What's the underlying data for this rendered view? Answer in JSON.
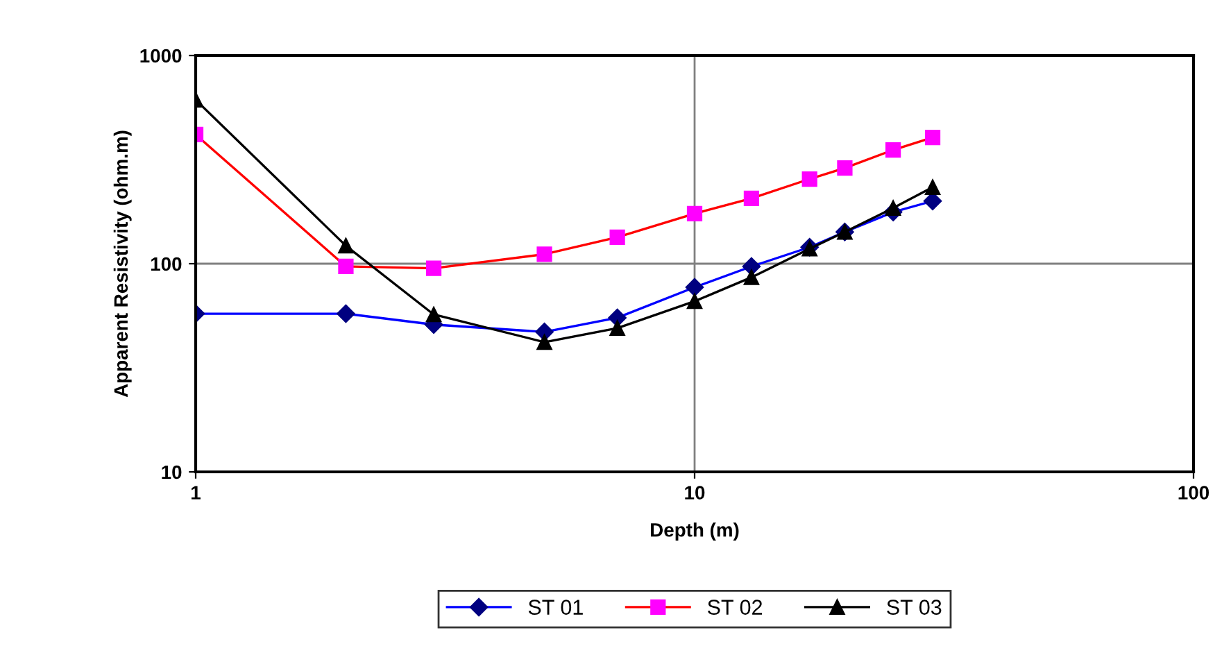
{
  "chart_data": {
    "type": "line",
    "xlabel": "Depth (m)",
    "ylabel": "Apparent Resistivity (ohm.m)",
    "x": [
      1,
      2,
      3,
      5,
      7,
      10,
      13,
      17,
      20,
      25,
      30
    ],
    "series": [
      {
        "name": "ST 01",
        "color": "#0000ff",
        "colors": [
          "#000080",
          "#000080",
          "#000080",
          "#000080",
          "#000080",
          "#000080",
          "#000080",
          "#000080",
          "#000080",
          "#000080",
          "#000080"
        ],
        "marker": "diamond",
        "values": [
          57.5,
          57.5,
          51,
          47,
          55,
          77,
          97,
          120,
          142,
          177,
          200
        ]
      },
      {
        "name": "ST 02",
        "color": "#ff0000",
        "colors": [
          "#ff00ff",
          "#ff00ff",
          "#ff00ff",
          "#ff00ff",
          "#ff00ff",
          "#ff00ff",
          "#ff00ff",
          "#ff00ff",
          "#ff00ff",
          "#ff00ff",
          "#ff00ff"
        ],
        "marker": "square",
        "values": [
          417,
          97,
          95,
          111,
          134,
          174,
          206,
          255,
          288,
          352,
          404
        ]
      },
      {
        "name": "ST 03",
        "color": "#000000",
        "colors": [
          "#000000",
          "#000000",
          "#000000",
          "#000000",
          "#000000",
          "#000000",
          "#000000",
          "#000000",
          "#000000",
          "#000000",
          "#000000"
        ],
        "marker": "triangle",
        "values": [
          612,
          122,
          57,
          42,
          49,
          66,
          86,
          118,
          142,
          185,
          233
        ]
      }
    ],
    "log": "xy",
    "xlim": [
      1,
      100
    ],
    "ylim": [
      10,
      1000
    ],
    "xticks": [
      1,
      10,
      100
    ],
    "yticks": [
      10,
      100,
      1000
    ],
    "grid": true,
    "legend": "bottom"
  }
}
